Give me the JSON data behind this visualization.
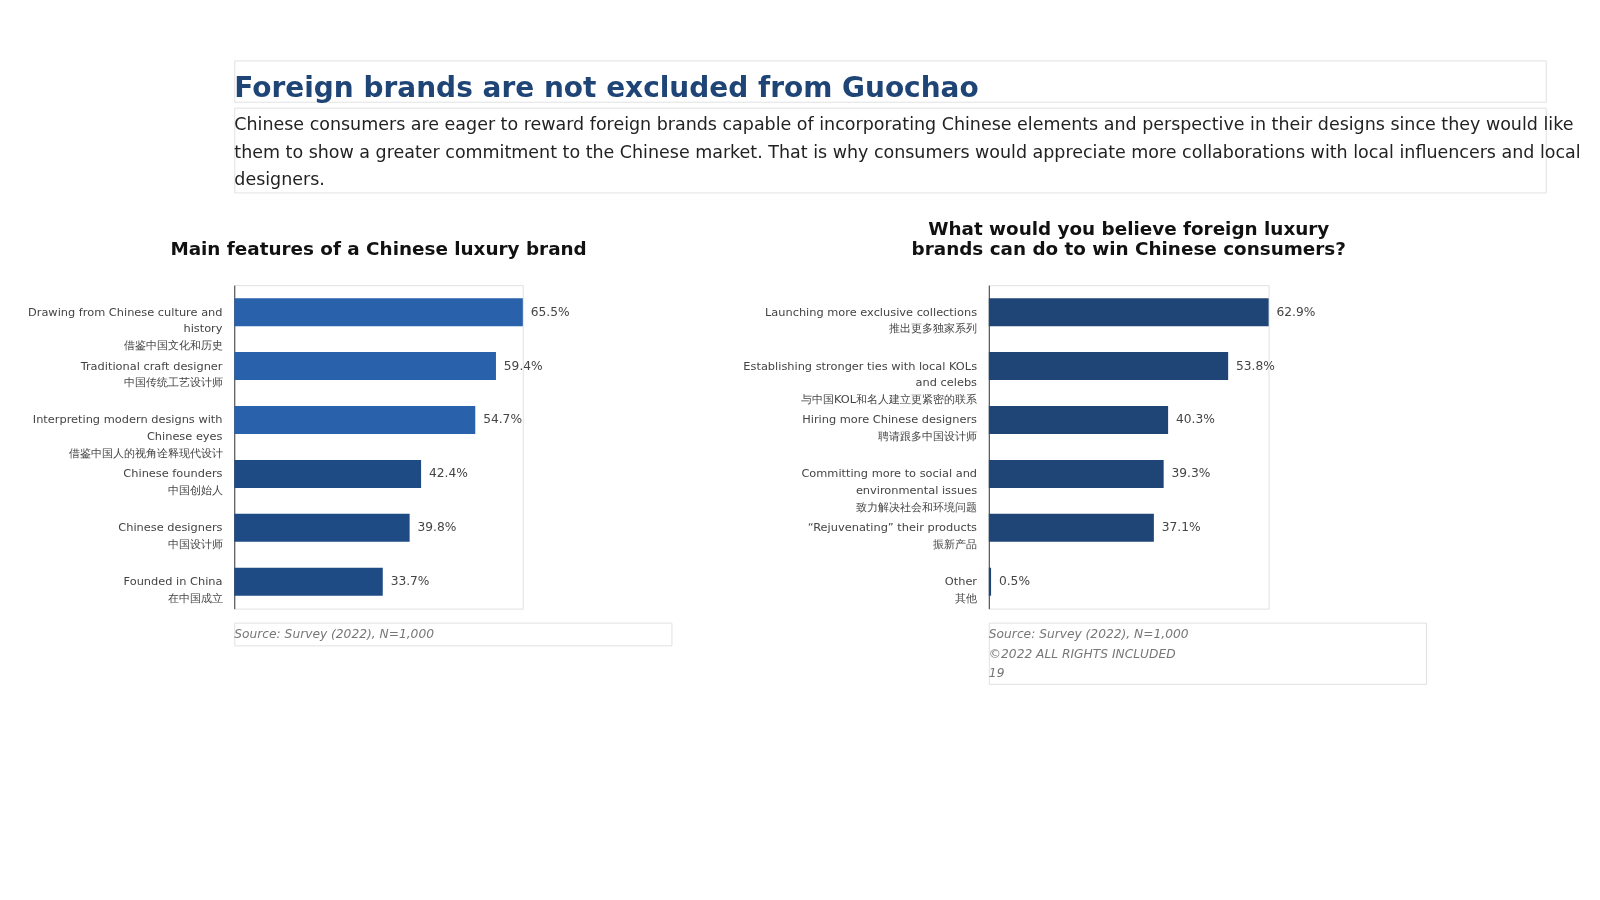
{
  "chart_data": [
    {
      "type": "bar",
      "orientation": "horizontal",
      "title": "Main features of a Chinese luxury brand",
      "categories": [
        "Drawing from Chinese culture and\nhistory\n借鉴中国文化和历史",
        "Traditional craft designer\n中国传统工艺设计师",
        "Interpreting modern designs with\nChinese eyes\n借鉴中国人的视角诠释现代设计",
        "Chinese founders\n中国创始人",
        "Chinese designers\n中国设计师",
        "Founded in China\n在中国成立"
      ],
      "values": [
        65.5,
        59.4,
        54.7,
        42.4,
        39.8,
        33.7
      ],
      "value_labels": [
        "65.5%",
        "59.4%",
        "54.7%",
        "42.4%",
        "39.8%",
        "33.7%"
      ],
      "colors": [
        "#2962ab",
        "#2962ab",
        "#2962ab",
        "#1f4b85",
        "#1f4b85",
        "#1f4b85"
      ],
      "annotations": [
        "Foreign brands are not excluded from Guochao",
        "Chinese consumers are eager to reward foreign brands capable of incorporating Chinese elements and perspective in their designs since they would like them to show a greater commitment to the Chinese market. That is why consumers would appreciate more collaborations with local influencers and local designers.",
        "Source: Survey (2022), N=1,000"
      ]
    },
    {
      "type": "bar",
      "orientation": "horizontal",
      "title": "What would you believe foreign luxury\nbrands can do to win Chinese consumers?",
      "categories": [
        "Launching more exclusive collections\n推出更多独家系列",
        "Establishing stronger ties with local KOLs\nand celebs\n与中国KOL和名人建立更紧密的联系",
        "Hiring more Chinese designers\n聘请跟多中国设计师",
        "Committing more to social and\nenvironmental issues\n致力解决社会和环境问题",
        "“Rejuvenating” their products\n振新产品",
        "Other\n其他"
      ],
      "values": [
        62.9,
        53.8,
        40.3,
        39.3,
        37.1,
        0.5
      ],
      "value_labels": [
        "62.9%",
        "53.8%",
        "40.3%",
        "39.3%",
        "37.1%",
        "0.5%"
      ],
      "colors": [
        "#1f4577",
        "#1f4577",
        "#1f4577",
        "#1f4577",
        "#1f4577",
        "#1f4577"
      ],
      "annotations": [
        "Source: Survey (2022), N=1,000",
        "©2022 ALL RIGHTS INCLUDED",
        "19"
      ]
    }
  ]
}
